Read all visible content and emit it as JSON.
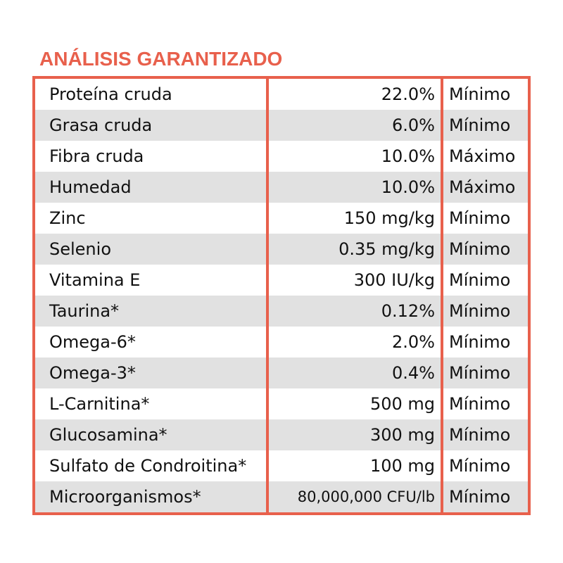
{
  "title": "ANÁLISIS GARANTIZADO",
  "accent_color": "#e8604c",
  "rows": [
    {
      "name": "Proteína cruda",
      "value": "22.0%",
      "type": "Mínimo"
    },
    {
      "name": "Grasa cruda",
      "value": "6.0%",
      "type": "Mínimo"
    },
    {
      "name": "Fibra cruda",
      "value": "10.0%",
      "type": "Máximo"
    },
    {
      "name": "Humedad",
      "value": "10.0%",
      "type": "Máximo"
    },
    {
      "name": "Zinc",
      "value": "150 mg/kg",
      "type": "Mínimo"
    },
    {
      "name": "Selenio",
      "value": "0.35 mg/kg",
      "type": "Mínimo"
    },
    {
      "name": "Vitamina E",
      "value": "300 IU/kg",
      "type": "Mínimo"
    },
    {
      "name": "Taurina*",
      "value": "0.12%",
      "type": "Mínimo"
    },
    {
      "name": "Omega-6*",
      "value": "2.0%",
      "type": "Mínimo"
    },
    {
      "name": "Omega-3*",
      "value": "0.4%",
      "type": "Mínimo"
    },
    {
      "name": "L-Carnitina*",
      "value": "500 mg",
      "type": "Mínimo"
    },
    {
      "name": "Glucosamina*",
      "value": "300 mg",
      "type": "Mínimo"
    },
    {
      "name": "Sulfato de Condroitina*",
      "value": "100 mg",
      "type": "Mínimo"
    },
    {
      "name": "Microorganismos*",
      "value": "80,000,000 CFU/lb",
      "type": "Mínimo"
    }
  ]
}
